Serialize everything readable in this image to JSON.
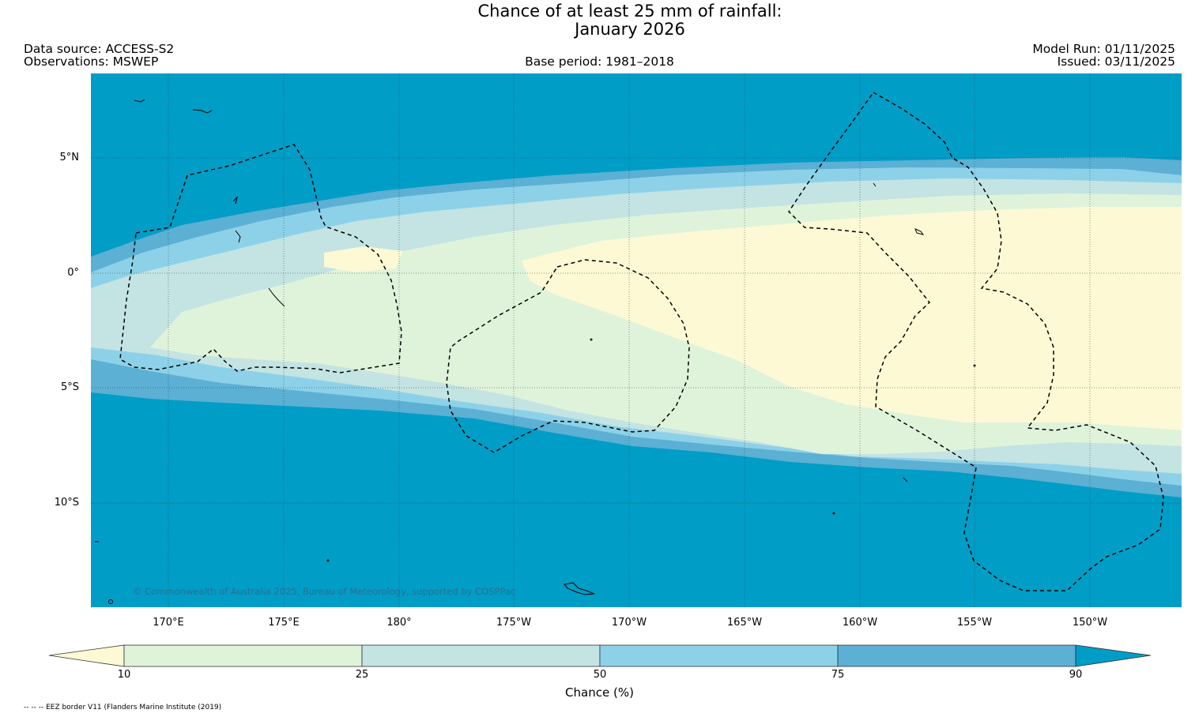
{
  "title": {
    "line1": "Chance of at least 25 mm of rainfall:",
    "line2": "January 2026"
  },
  "header": {
    "data_source": "Data source: ACCESS-S2",
    "observations": "Observations: MSWEP",
    "base_period": "Base period: 1981–2018",
    "model_run": "Model Run: 01/11/2025",
    "issued": "Issued: 03/11/2025"
  },
  "map": {
    "latitude_labels": [
      "5°N",
      "0°",
      "5°S",
      "10°S"
    ],
    "longitude_labels": [
      "170°E",
      "175°E",
      "180°",
      "175°W",
      "170°W",
      "165°W",
      "160°W",
      "155°W",
      "150°W"
    ],
    "copyright": "© Commonwealth of Australia 2025, Bureau of Meteorology, supported by COSPPac"
  },
  "colorbar": {
    "ticks": [
      "10",
      "25",
      "50",
      "75",
      "90"
    ],
    "label": "Chance (%)",
    "colors": [
      "#fdf9d5",
      "#dff3db",
      "#c3e4e3",
      "#8dd1e8",
      "#5bb0d4",
      "#009dc7"
    ]
  },
  "footnote": "-- -- -- EEZ border V11 (Flanders Marine Institute (2019)"
}
